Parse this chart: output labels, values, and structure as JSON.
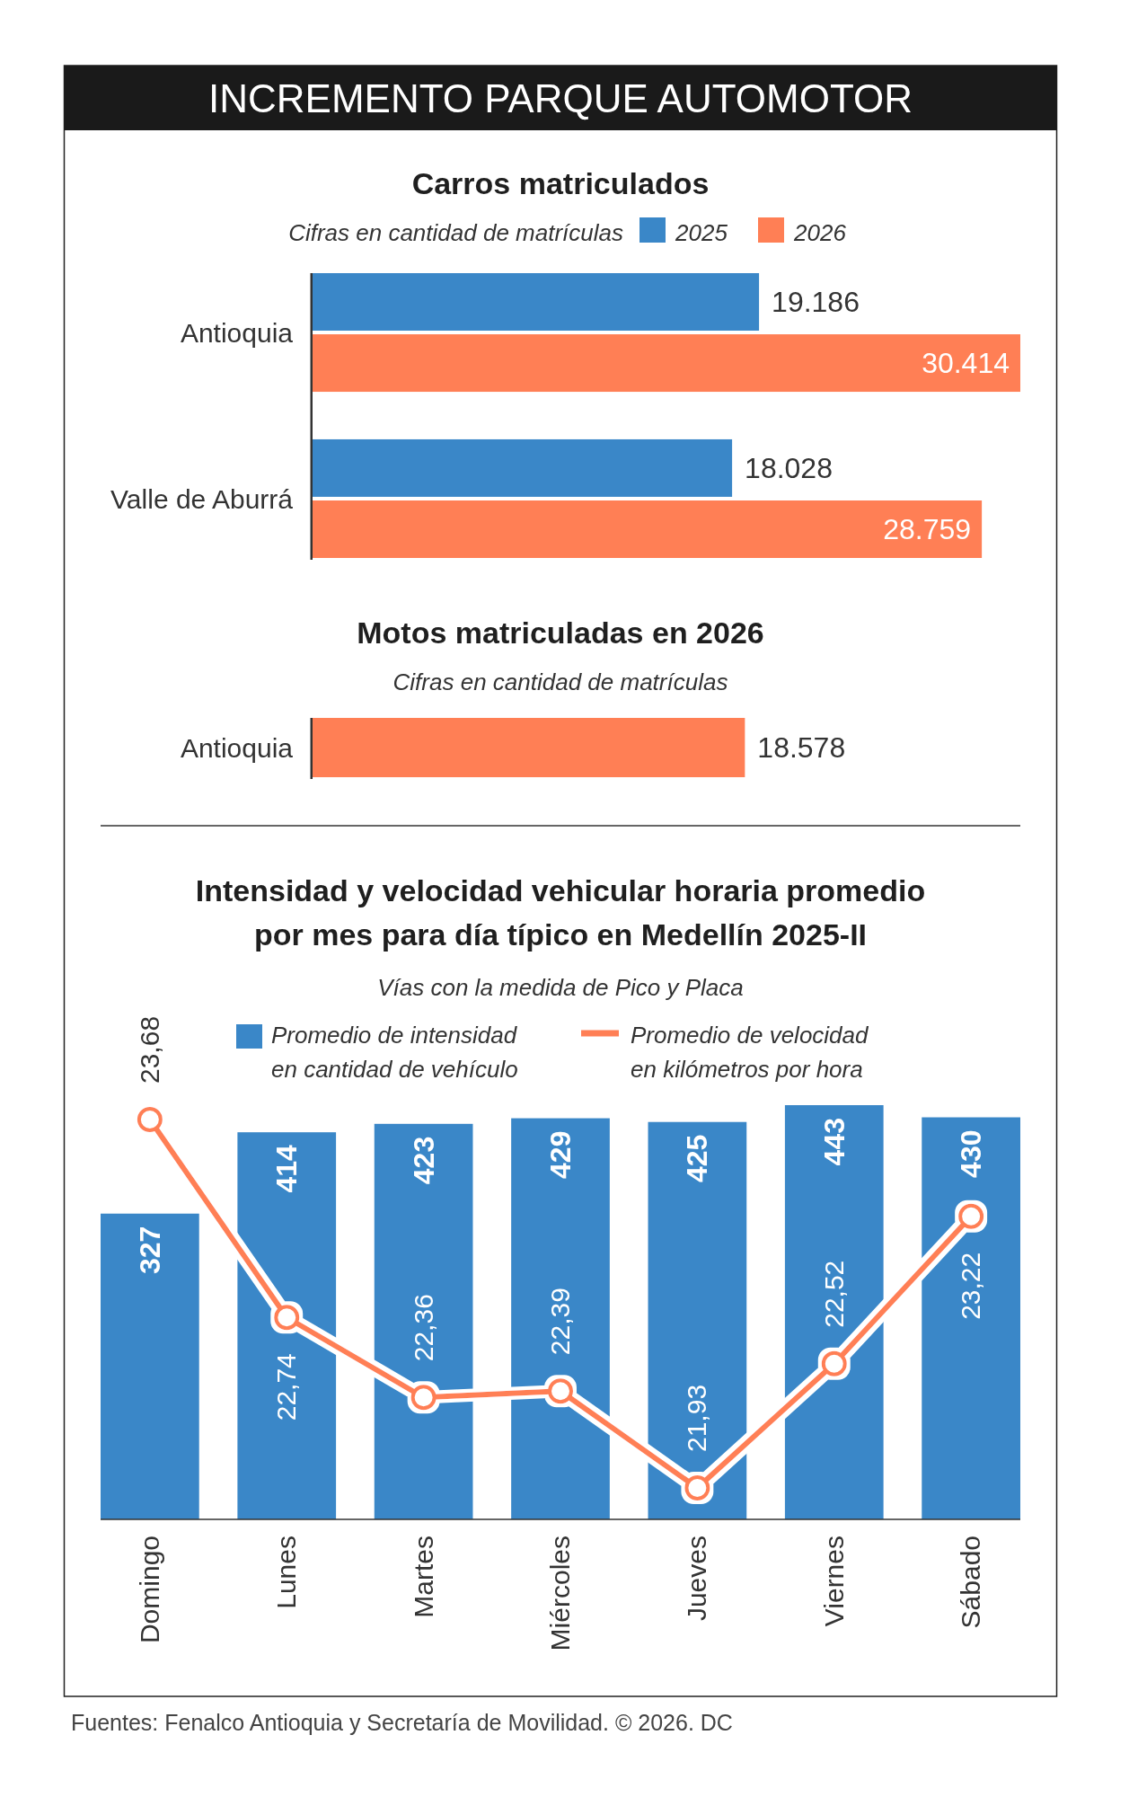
{
  "chart_data": [
    {
      "type": "other",
      "title": "INCREMENTO PARQUE AUTOMOTOR"
    },
    {
      "type": "bar",
      "orientation": "horizontal",
      "title": "Carros matriculados",
      "subtitle": "Cifras en cantidad de matrículas",
      "categories": [
        "Antioquia",
        "Valle de Aburrá"
      ],
      "series": [
        {
          "name": "2025",
          "color": "#3a87c8",
          "values": [
            19186,
            18028
          ],
          "value_labels": [
            "19.186",
            "18.028"
          ]
        },
        {
          "name": "2026",
          "color": "#ff7f55",
          "values": [
            30414,
            28759
          ],
          "value_labels": [
            "30.414",
            "28.759"
          ]
        }
      ],
      "legend": "top right"
    },
    {
      "type": "bar",
      "orientation": "horizontal",
      "title": "Motos matriculadas en 2026",
      "subtitle": "Cifras en cantidad de matrículas",
      "categories": [
        "Antioquia"
      ],
      "values": [
        18578
      ],
      "color": "#ff7f55",
      "value_labels": [
        "18.578"
      ]
    },
    {
      "type": "bar",
      "title": "Intensidad y velocidad vehicular horaria promedio por mes para día típico en Medellín 2025-II",
      "subtitle": "Vías con la medida de Pico y Placa",
      "categories": [
        "Domingo",
        "Lunes",
        "Martes",
        "Miércoles",
        "Jueves",
        "Viernes",
        "Sábado"
      ],
      "series": [
        {
          "name": "Promedio de intensidad en cantidad de vehículo",
          "color": "#3a87c8",
          "values": [
            327,
            414,
            423,
            429,
            425,
            443,
            430
          ],
          "value_labels": [
            "327",
            "414",
            "423",
            "429",
            "425",
            "443",
            "430"
          ]
        },
        {
          "name": "Promedio de velocidad en kilómetros por hora",
          "type": "line",
          "axis": "y2",
          "color": "#ff7f55",
          "values": [
            23.68,
            22.74,
            22.36,
            22.39,
            21.93,
            22.52,
            23.22
          ],
          "value_labels": [
            "23,68",
            "22,74",
            "22,36",
            "22,39",
            "21,93",
            "22,52",
            "23,22"
          ]
        }
      ],
      "tick_labels": "x",
      "legend": "top",
      "marker": "circle",
      "annotations": [
        "Fuentes: Fenalco Antioquia y Secretaría de Movilidad. © 2026. DC"
      ]
    }
  ]
}
